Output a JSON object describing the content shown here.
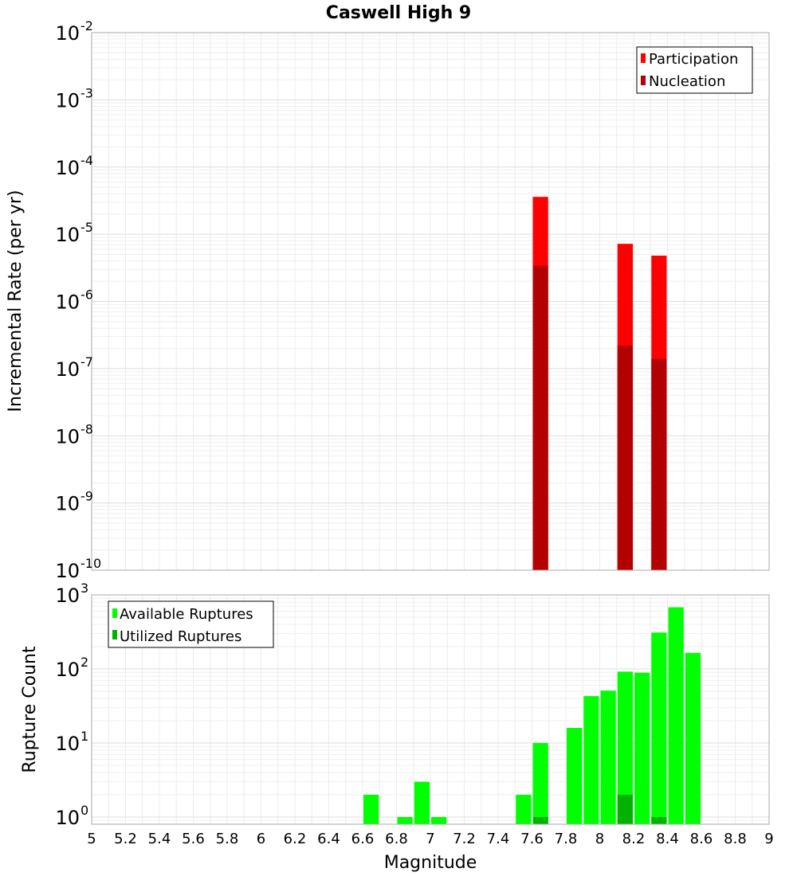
{
  "chart_data": [
    {
      "type": "bar",
      "title": "Caswell High 9",
      "ylabel": "Incremental Rate (per yr)",
      "xlabel": "",
      "yscale": "log",
      "ylim": [
        1e-10,
        0.01
      ],
      "xlim": [
        5,
        9
      ],
      "y_ticks": [
        {
          "base": "10",
          "exp": "-10",
          "value": 1e-10
        },
        {
          "base": "10",
          "exp": "-9",
          "value": 1e-09
        },
        {
          "base": "10",
          "exp": "-8",
          "value": 1e-08
        },
        {
          "base": "10",
          "exp": "-7",
          "value": 1e-07
        },
        {
          "base": "10",
          "exp": "-6",
          "value": 1e-06
        },
        {
          "base": "10",
          "exp": "-5",
          "value": 1e-05
        },
        {
          "base": "10",
          "exp": "-4",
          "value": 0.0001
        },
        {
          "base": "10",
          "exp": "-3",
          "value": 0.001
        },
        {
          "base": "10",
          "exp": "-2",
          "value": 0.01
        }
      ],
      "grid": true,
      "legend_position": "top-right",
      "bin_width": 0.1,
      "series": [
        {
          "name": "Participation",
          "color": "#ff0000",
          "points": [
            {
              "x": 7.65,
              "y": 3.6e-05
            },
            {
              "x": 8.15,
              "y": 7.2e-06
            },
            {
              "x": 8.35,
              "y": 4.8e-06
            }
          ]
        },
        {
          "name": "Nucleation",
          "color": "#b30000",
          "points": [
            {
              "x": 7.65,
              "y": 3.4e-06
            },
            {
              "x": 8.15,
              "y": 2.2e-07
            },
            {
              "x": 8.35,
              "y": 1.4e-07
            }
          ]
        }
      ]
    },
    {
      "type": "bar",
      "title": "",
      "ylabel": "Rupture Count",
      "xlabel": "Magnitude",
      "yscale": "log",
      "ylim": [
        0.8,
        1000
      ],
      "xlim": [
        5,
        9
      ],
      "x_ticks": [
        "5",
        "5.2",
        "5.4",
        "5.6",
        "5.8",
        "6",
        "6.2",
        "6.4",
        "6.6",
        "6.8",
        "7",
        "7.2",
        "7.4",
        "7.6",
        "7.8",
        "8",
        "8.2",
        "8.4",
        "8.6",
        "8.8",
        "9"
      ],
      "y_ticks": [
        {
          "base": "10",
          "exp": "0",
          "value": 1
        },
        {
          "base": "10",
          "exp": "1",
          "value": 10
        },
        {
          "base": "10",
          "exp": "2",
          "value": 100
        },
        {
          "base": "10",
          "exp": "3",
          "value": 1000
        }
      ],
      "grid": true,
      "legend_position": "top-left",
      "bin_width": 0.1,
      "series": [
        {
          "name": "Available Ruptures",
          "color": "#00ff00",
          "points": [
            {
              "x": 6.65,
              "y": 2
            },
            {
              "x": 6.85,
              "y": 1
            },
            {
              "x": 6.95,
              "y": 3
            },
            {
              "x": 7.05,
              "y": 1
            },
            {
              "x": 7.55,
              "y": 2
            },
            {
              "x": 7.65,
              "y": 10
            },
            {
              "x": 7.85,
              "y": 16
            },
            {
              "x": 7.95,
              "y": 43
            },
            {
              "x": 8.05,
              "y": 51
            },
            {
              "x": 8.15,
              "y": 92
            },
            {
              "x": 8.25,
              "y": 89
            },
            {
              "x": 8.35,
              "y": 310
            },
            {
              "x": 8.45,
              "y": 680
            },
            {
              "x": 8.55,
              "y": 165
            }
          ]
        },
        {
          "name": "Utilized Ruptures",
          "color": "#00b300",
          "points": [
            {
              "x": 7.65,
              "y": 1
            },
            {
              "x": 8.15,
              "y": 2
            },
            {
              "x": 8.35,
              "y": 1
            }
          ]
        }
      ]
    }
  ]
}
